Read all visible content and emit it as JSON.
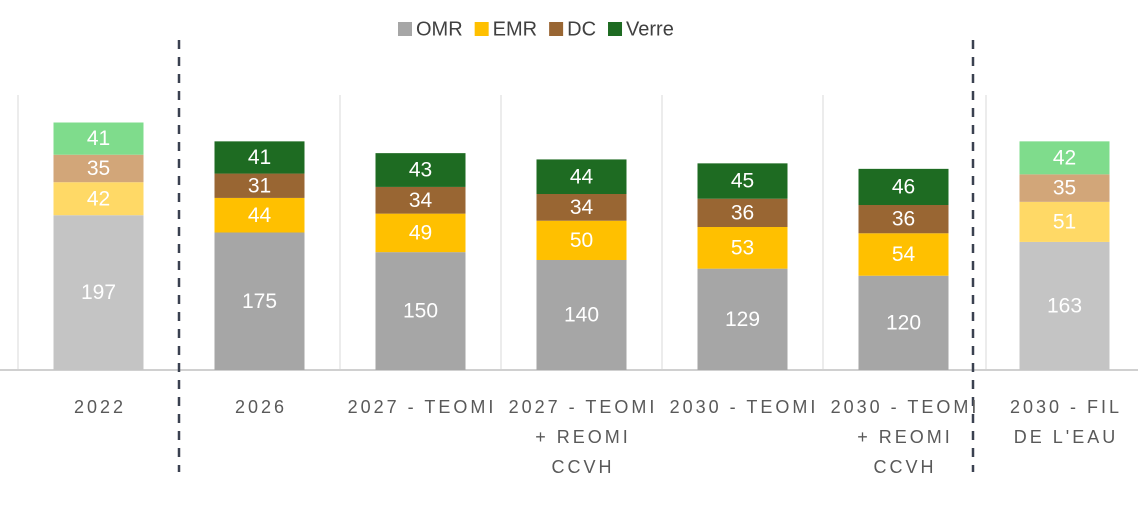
{
  "chart_data": {
    "type": "stacked_bar",
    "categories": [
      "2022",
      "2026",
      "2027 - TEOMI",
      "2027 - TEOMI + REOMI CCVH",
      "2030 - TEOMI",
      "2030 - TEOMI + REOMI CCVH",
      "2030 - FIL DE L'EAU"
    ],
    "series": [
      {
        "name": "OMR",
        "color": "#a6a6a6",
        "point_colors": [
          "#c4c4c4",
          "#a6a6a6",
          "#a6a6a6",
          "#a6a6a6",
          "#a6a6a6",
          "#a6a6a6",
          "#c4c4c4"
        ],
        "values": [
          197,
          175,
          150,
          140,
          129,
          120,
          163
        ]
      },
      {
        "name": "EMR",
        "color": "#ffc000",
        "point_colors": [
          "#ffd966",
          "#ffc000",
          "#ffc000",
          "#ffc000",
          "#ffc000",
          "#ffc000",
          "#ffd966"
        ],
        "values": [
          42,
          44,
          49,
          50,
          53,
          54,
          51
        ]
      },
      {
        "name": "DC",
        "color": "#996633",
        "point_colors": [
          "#d2a679",
          "#996633",
          "#996633",
          "#996633",
          "#996633",
          "#996633",
          "#d2a679"
        ],
        "values": [
          35,
          31,
          34,
          34,
          36,
          36,
          35
        ]
      },
      {
        "name": "Verre",
        "color": "#1e6b22",
        "point_colors": [
          "#7fdc8c",
          "#1e6b22",
          "#1e6b22",
          "#1e6b22",
          "#1e6b22",
          "#1e6b22",
          "#7fdc8c"
        ],
        "values": [
          41,
          41,
          43,
          44,
          45,
          46,
          42
        ]
      }
    ],
    "ylim": [
      0,
      350
    ]
  }
}
